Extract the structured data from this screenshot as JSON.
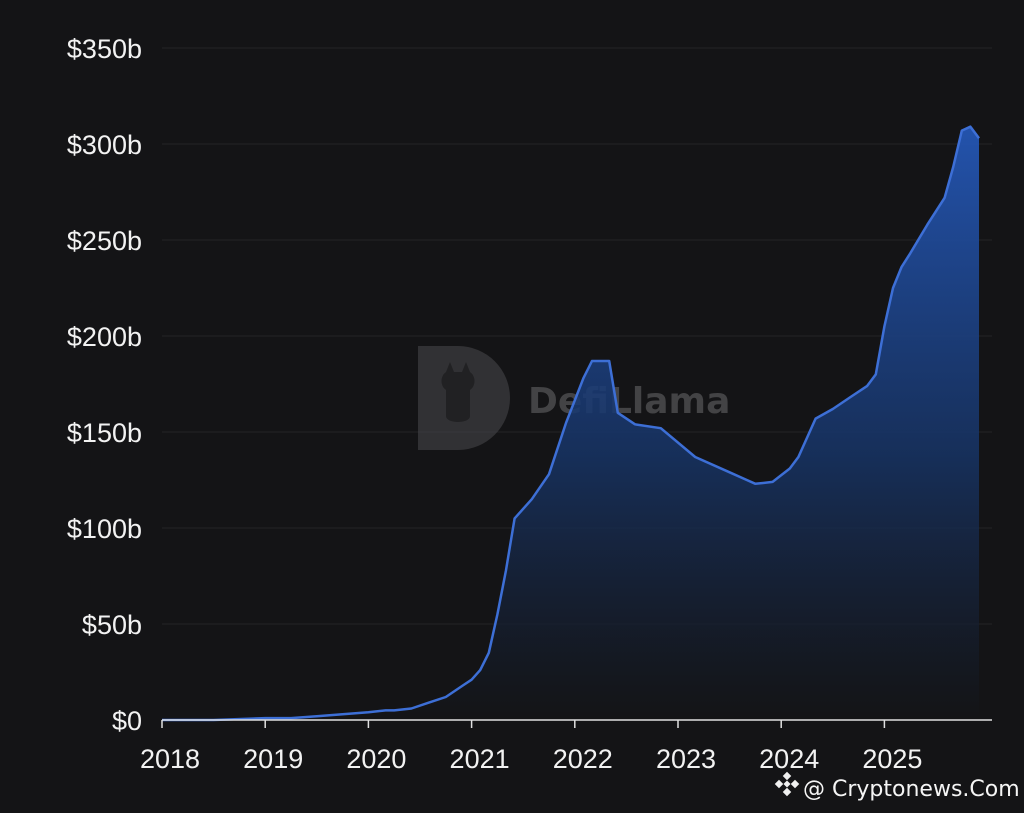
{
  "chart_data": {
    "type": "area",
    "title": "",
    "xlabel": "",
    "ylabel": "",
    "x_ticks": [
      "2018",
      "2019",
      "2020",
      "2021",
      "2022",
      "2023",
      "2024",
      "2025"
    ],
    "y_ticks": [
      {
        "value": 0,
        "label": "$0"
      },
      {
        "value": 50,
        "label": "$50b"
      },
      {
        "value": 100,
        "label": "$100b"
      },
      {
        "value": 150,
        "label": "$150b"
      },
      {
        "value": 200,
        "label": "$200b"
      },
      {
        "value": 250,
        "label": "$250b"
      },
      {
        "value": 300,
        "label": "$300b"
      },
      {
        "value": 350,
        "label": "$350b"
      }
    ],
    "ylim": [
      0,
      350
    ],
    "xlim": [
      "2018-01",
      "2025-12"
    ],
    "grid": "horizontal",
    "line_color": "#3d6fd6",
    "fill_color": "#1f4ca8",
    "series": [
      {
        "x": [
          "2018-01",
          "2018-07",
          "2019-01",
          "2019-04",
          "2019-07",
          "2019-10",
          "2020-01",
          "2020-03",
          "2020-04",
          "2020-06",
          "2020-08",
          "2020-10",
          "2020-12",
          "2021-01",
          "2021-02",
          "2021-03",
          "2021-04",
          "2021-05",
          "2021-06",
          "2021-08",
          "2021-10",
          "2021-12",
          "2022-02",
          "2022-03",
          "2022-04",
          "2022-05",
          "2022-06",
          "2022-08",
          "2022-11",
          "2023-03",
          "2023-07",
          "2023-09",
          "2023-10",
          "2023-12",
          "2024-02",
          "2024-03",
          "2024-05",
          "2024-07",
          "2024-09",
          "2024-11",
          "2024-12",
          "2025-01",
          "2025-02",
          "2025-03",
          "2025-04",
          "2025-06",
          "2025-08",
          "2025-09",
          "2025-10",
          "2025-11",
          "2025-12"
        ],
        "values": [
          0,
          0,
          1,
          1,
          2,
          3,
          4,
          5,
          5,
          6,
          9,
          12,
          18,
          21,
          26,
          35,
          55,
          78,
          105,
          115,
          128,
          155,
          178,
          187,
          187,
          187,
          160,
          154,
          152,
          137,
          129,
          125,
          123,
          124,
          131,
          137,
          157,
          162,
          168,
          174,
          180,
          205,
          225,
          236,
          243,
          258,
          272,
          288,
          307,
          309,
          303
        ]
      }
    ]
  },
  "watermark": {
    "text": "DefiLlama"
  },
  "credit": {
    "text": "@ Cryptonews.Com"
  }
}
